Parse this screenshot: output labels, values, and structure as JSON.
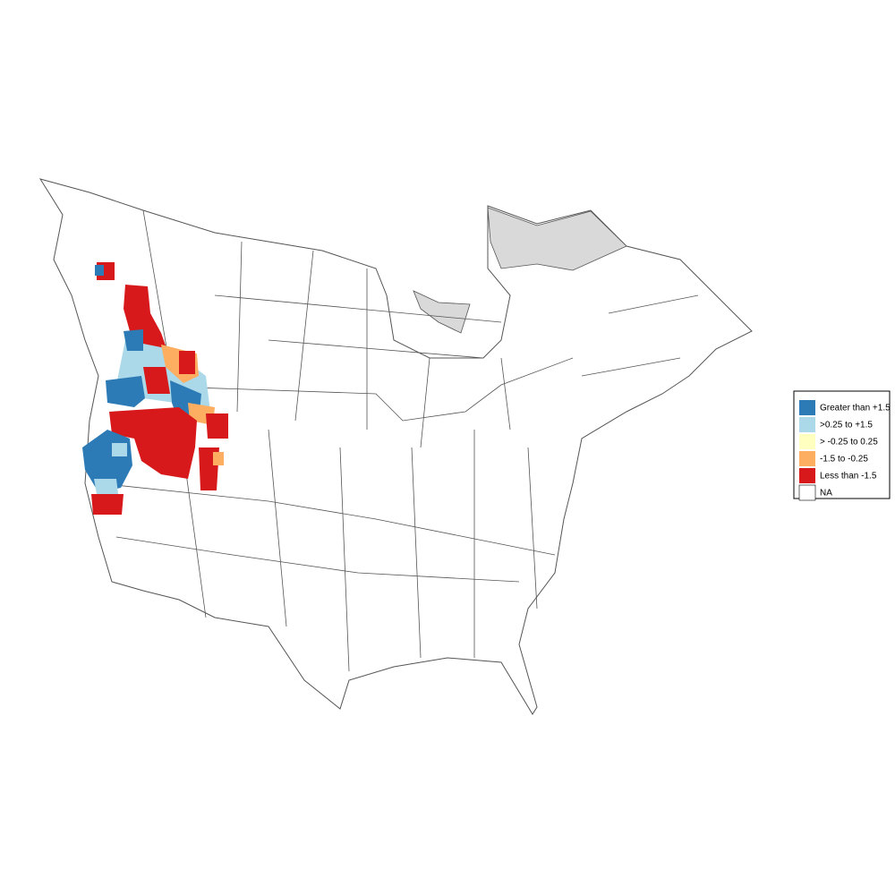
{
  "legend": {
    "items": [
      {
        "label": "Greater than +1.5",
        "color": "#2c7bb6"
      },
      {
        "label": ">0.25 to +1.5",
        "color": "#abd9e9"
      },
      {
        "label": "> -0.25 to 0.25",
        "color": "#ffffbf"
      },
      {
        "label": "-1.5 to -0.25",
        "color": "#fdae61"
      },
      {
        "label": "Less than -1.5",
        "color": "#d7191c"
      },
      {
        "label": "NA",
        "color": "#ffffff"
      }
    ]
  }
}
